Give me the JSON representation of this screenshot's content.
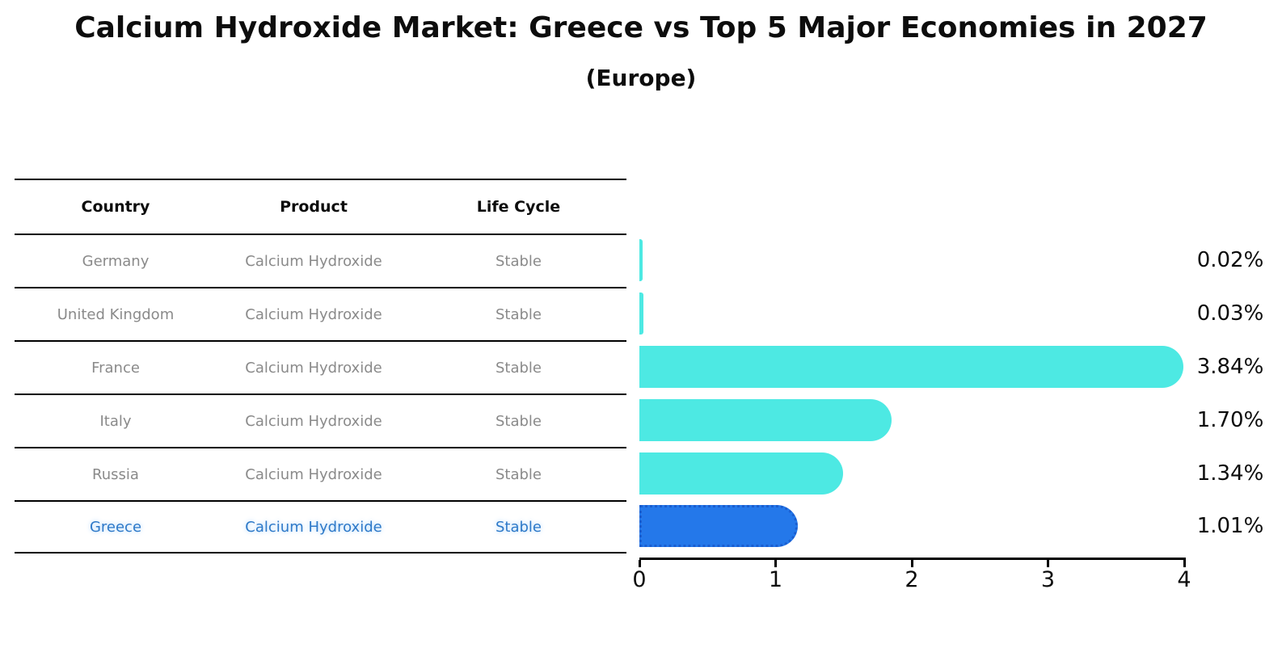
{
  "title": "Calcium Hydroxide Market: Greece vs Top 5 Major Economies in 2027",
  "subtitle": "(Europe)",
  "table": {
    "headers": [
      "Country",
      "Product",
      "Life Cycle"
    ],
    "rows": [
      {
        "country": "Germany",
        "product": "Calcium Hydroxide",
        "life_cycle": "Stable",
        "highlighted": false
      },
      {
        "country": "United Kingdom",
        "product": "Calcium Hydroxide",
        "life_cycle": "Stable",
        "highlighted": false
      },
      {
        "country": "France",
        "product": "Calcium Hydroxide",
        "life_cycle": "Stable",
        "highlighted": false
      },
      {
        "country": "Italy",
        "product": "Calcium Hydroxide",
        "life_cycle": "Stable",
        "highlighted": false
      },
      {
        "country": "Russia",
        "product": "Calcium Hydroxide",
        "life_cycle": "Stable",
        "highlighted": false
      },
      {
        "country": "Greece",
        "product": "Calcium Hydroxide",
        "life_cycle": "Stable",
        "highlighted": true
      }
    ]
  },
  "chart_data": {
    "type": "bar",
    "orientation": "horizontal",
    "title": "Calcium Hydroxide Market: Greece vs Top 5 Major Economies in 2027 (Europe)",
    "categories": [
      "Germany",
      "United Kingdom",
      "France",
      "Italy",
      "Russia",
      "Greece"
    ],
    "values": [
      0.02,
      0.03,
      3.84,
      1.7,
      1.34,
      1.01
    ],
    "labels": [
      "0.02%",
      "0.03%",
      "3.84%",
      "1.70%",
      "1.34%",
      "1.01%"
    ],
    "xlabel": "",
    "ylabel": "",
    "xlim": [
      0,
      4
    ],
    "x_ticks": [
      "0",
      "1",
      "2",
      "3",
      "4"
    ],
    "grid": false,
    "legend": false,
    "bar_color": "#4de9e3",
    "highlight_color": "#2478ea",
    "highlight_index": 5,
    "highlight_category": "Greece"
  },
  "colors": {
    "background": "#ffffff",
    "text": "#0d0d0d",
    "table_text_muted": "#8a8a8a",
    "highlight_text": "#2e79c8",
    "bar_cyan": "#4de9e3",
    "bar_blue": "#2478ea",
    "rule": "#000000"
  }
}
